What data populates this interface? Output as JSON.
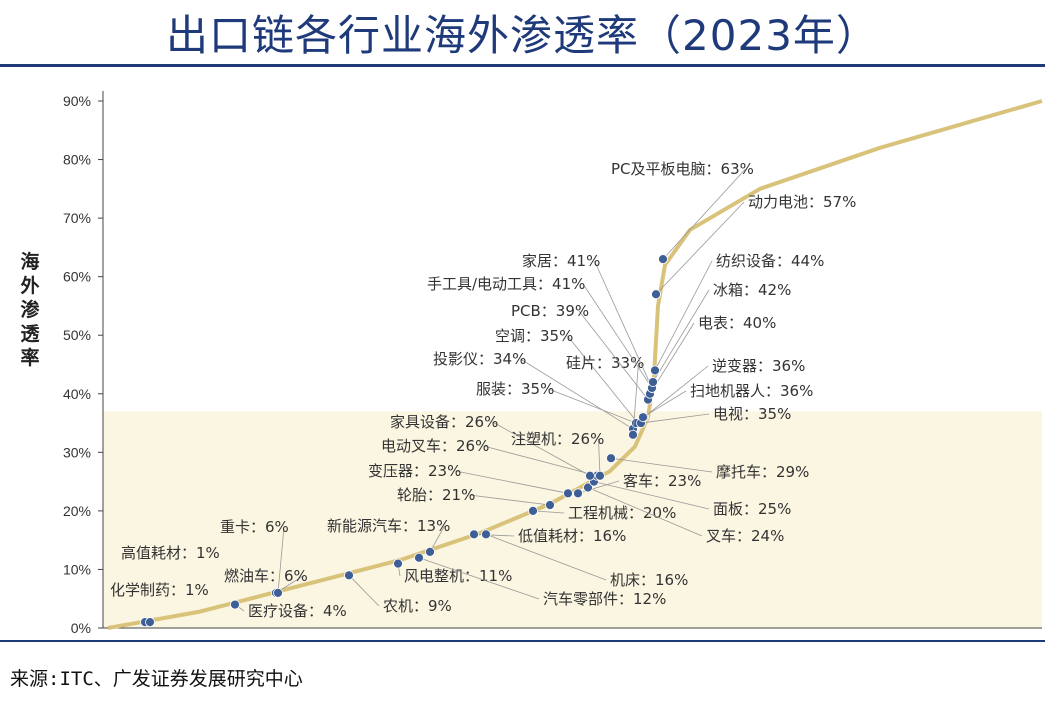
{
  "title": "出口链各行业海外渗透率（2023年）",
  "source": "来源:ITC、广发证券发展研究中心",
  "colors": {
    "title": "#1f3a7a",
    "curve": "#d9c27a",
    "point": "#3d5f96",
    "highlight": "#faf6e1"
  },
  "chart_data": {
    "type": "scatter",
    "ylabel": "海外渗透率",
    "ylim": [
      0,
      0.9
    ],
    "yticks": [
      "0%",
      "10%",
      "20%",
      "30%",
      "40%",
      "50%",
      "60%",
      "70%",
      "80%",
      "90%"
    ],
    "highlight_band_upper": 0.37,
    "x_axis_labels": "none",
    "points": [
      {
        "name": "化学制药",
        "value": "1%"
      },
      {
        "name": "高值耗材",
        "value": "1%"
      },
      {
        "name": "医疗设备",
        "value": "4%"
      },
      {
        "name": "燃油车",
        "value": "6%"
      },
      {
        "name": "重卡",
        "value": "6%"
      },
      {
        "name": "农机",
        "value": "9%"
      },
      {
        "name": "风电整机",
        "value": "11%"
      },
      {
        "name": "汽车零部件",
        "value": "12%"
      },
      {
        "name": "新能源汽车",
        "value": "13%"
      },
      {
        "name": "低值耗材",
        "value": "16%"
      },
      {
        "name": "机床",
        "value": "16%"
      },
      {
        "name": "工程机械",
        "value": "20%"
      },
      {
        "name": "轮胎",
        "value": "21%"
      },
      {
        "name": "变压器",
        "value": "23%"
      },
      {
        "name": "客车",
        "value": "23%"
      },
      {
        "name": "叉车",
        "value": "24%"
      },
      {
        "name": "面板",
        "value": "25%"
      },
      {
        "name": "电动叉车",
        "value": "26%"
      },
      {
        "name": "家具设备",
        "value": "26%"
      },
      {
        "name": "注塑机",
        "value": "26%"
      },
      {
        "name": "摩托车",
        "value": "29%"
      },
      {
        "name": "投影仪",
        "value": "34%"
      },
      {
        "name": "空调",
        "value": "35%"
      },
      {
        "name": "服装",
        "value": "35%"
      },
      {
        "name": "电视",
        "value": "35%"
      },
      {
        "name": "逆变器",
        "value": "36%"
      },
      {
        "name": "扫地机器人",
        "value": "36%"
      },
      {
        "name": "硅片",
        "value": "33%"
      },
      {
        "name": "PCB",
        "value": "39%"
      },
      {
        "name": "电表",
        "value": "40%"
      },
      {
        "name": "手工具/电动工具",
        "value": "41%"
      },
      {
        "name": "家居",
        "value": "41%"
      },
      {
        "name": "冰箱",
        "value": "42%"
      },
      {
        "name": "纺织设备",
        "value": "44%"
      },
      {
        "name": "动力电池",
        "value": "57%"
      },
      {
        "name": "PC及平板电脑",
        "value": "63%"
      }
    ]
  }
}
